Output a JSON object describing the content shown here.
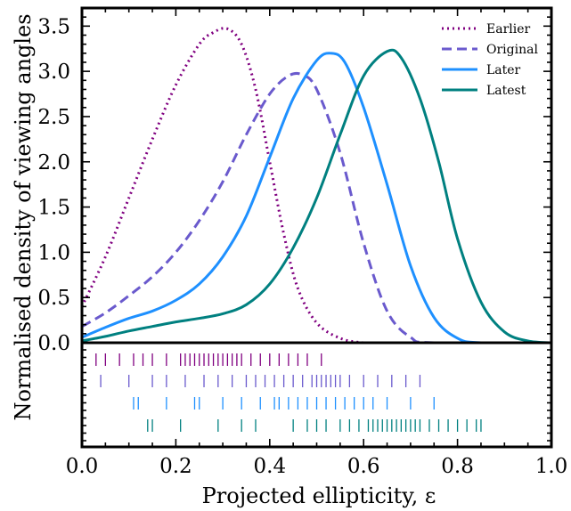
{
  "chart_data": {
    "type": "line",
    "xlabel": "Projected ellipticity, ε",
    "ylabel": "Normalised density of viewing angles",
    "xlim": [
      0.0,
      1.0
    ],
    "ylim": [
      0.0,
      3.7
    ],
    "xticks": [
      "0.0",
      "0.2",
      "0.4",
      "0.6",
      "0.8",
      "1.0"
    ],
    "yticks": [
      "0.0",
      "0.5",
      "1.0",
      "1.5",
      "2.0",
      "2.5",
      "3.0",
      "3.5"
    ],
    "legend_position": "top-right",
    "grid": false,
    "series": [
      {
        "name": "Earlier",
        "color": "#800080",
        "style": "dotted",
        "x": [
          0.0,
          0.05,
          0.1,
          0.15,
          0.2,
          0.25,
          0.28,
          0.31,
          0.34,
          0.37,
          0.4,
          0.43,
          0.46,
          0.5,
          0.55,
          0.6,
          0.65,
          1.0
        ],
        "y": [
          0.4,
          0.95,
          1.6,
          2.25,
          2.85,
          3.3,
          3.43,
          3.47,
          3.3,
          2.8,
          2.0,
          1.2,
          0.6,
          0.22,
          0.05,
          0.0,
          0.0,
          0.0
        ]
      },
      {
        "name": "Original",
        "color": "#6a5acd",
        "style": "dashed",
        "x": [
          0.0,
          0.05,
          0.1,
          0.15,
          0.2,
          0.25,
          0.3,
          0.35,
          0.4,
          0.44,
          0.47,
          0.5,
          0.55,
          0.6,
          0.65,
          0.7,
          0.75,
          1.0
        ],
        "y": [
          0.18,
          0.33,
          0.52,
          0.73,
          1.0,
          1.35,
          1.78,
          2.3,
          2.75,
          2.95,
          2.96,
          2.8,
          2.1,
          1.1,
          0.35,
          0.06,
          0.0,
          0.0
        ]
      },
      {
        "name": "Later",
        "color": "#1e90ff",
        "style": "solid",
        "x": [
          0.0,
          0.05,
          0.1,
          0.15,
          0.2,
          0.25,
          0.3,
          0.35,
          0.4,
          0.45,
          0.5,
          0.53,
          0.56,
          0.6,
          0.65,
          0.7,
          0.75,
          0.8,
          0.85,
          1.0
        ],
        "y": [
          0.06,
          0.17,
          0.27,
          0.35,
          0.47,
          0.65,
          0.95,
          1.4,
          2.05,
          2.7,
          3.12,
          3.2,
          3.1,
          2.6,
          1.75,
          0.85,
          0.28,
          0.05,
          0.0,
          0.0
        ]
      },
      {
        "name": "Latest",
        "color": "#008080",
        "style": "solid",
        "x": [
          0.0,
          0.05,
          0.1,
          0.15,
          0.2,
          0.25,
          0.3,
          0.35,
          0.4,
          0.45,
          0.5,
          0.55,
          0.6,
          0.65,
          0.68,
          0.72,
          0.76,
          0.8,
          0.85,
          0.9,
          0.95,
          1.0
        ],
        "y": [
          0.02,
          0.07,
          0.13,
          0.18,
          0.23,
          0.27,
          0.32,
          0.42,
          0.65,
          1.05,
          1.6,
          2.3,
          2.95,
          3.22,
          3.15,
          2.7,
          2.0,
          1.15,
          0.45,
          0.12,
          0.02,
          0.0
        ]
      }
    ],
    "rug": [
      {
        "series": "Earlier",
        "color": "#800080",
        "x": [
          0.03,
          0.05,
          0.08,
          0.11,
          0.13,
          0.15,
          0.18,
          0.21,
          0.22,
          0.23,
          0.24,
          0.25,
          0.26,
          0.27,
          0.28,
          0.29,
          0.3,
          0.31,
          0.32,
          0.33,
          0.34,
          0.36,
          0.38,
          0.4,
          0.42,
          0.44,
          0.46,
          0.48,
          0.51
        ]
      },
      {
        "series": "Original",
        "color": "#6a5acd",
        "x": [
          0.04,
          0.1,
          0.15,
          0.18,
          0.22,
          0.26,
          0.29,
          0.32,
          0.35,
          0.37,
          0.39,
          0.41,
          0.43,
          0.45,
          0.47,
          0.49,
          0.5,
          0.51,
          0.52,
          0.53,
          0.54,
          0.55,
          0.57,
          0.6,
          0.63,
          0.66,
          0.69,
          0.72
        ]
      },
      {
        "series": "Later",
        "color": "#1e90ff",
        "x": [
          0.11,
          0.12,
          0.18,
          0.24,
          0.25,
          0.3,
          0.34,
          0.38,
          0.41,
          0.42,
          0.44,
          0.46,
          0.48,
          0.5,
          0.52,
          0.54,
          0.56,
          0.58,
          0.6,
          0.62,
          0.65,
          0.7,
          0.75
        ]
      },
      {
        "series": "Latest",
        "color": "#008080",
        "x": [
          0.14,
          0.15,
          0.21,
          0.29,
          0.34,
          0.37,
          0.45,
          0.48,
          0.5,
          0.52,
          0.55,
          0.57,
          0.59,
          0.61,
          0.62,
          0.63,
          0.64,
          0.65,
          0.66,
          0.67,
          0.68,
          0.69,
          0.7,
          0.71,
          0.72,
          0.74,
          0.76,
          0.78,
          0.8,
          0.82,
          0.84,
          0.85
        ]
      }
    ]
  }
}
